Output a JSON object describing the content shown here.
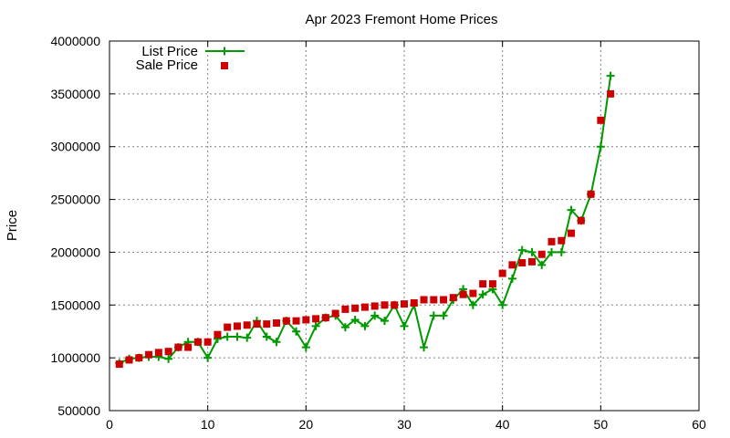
{
  "chart_data": {
    "type": "line",
    "title": "Apr 2023 Fremont Home Prices",
    "xlabel": "",
    "ylabel": "Price",
    "xlim": [
      0,
      60
    ],
    "ylim": [
      500000,
      4000000
    ],
    "xticks": [
      0,
      10,
      20,
      30,
      40,
      50,
      60
    ],
    "yticks": [
      500000,
      1000000,
      1500000,
      2000000,
      2500000,
      3000000,
      3500000,
      4000000
    ],
    "grid": true,
    "legend_position": "top-left",
    "x": [
      1,
      2,
      3,
      4,
      5,
      6,
      7,
      8,
      9,
      10,
      11,
      12,
      13,
      14,
      15,
      16,
      17,
      18,
      19,
      20,
      21,
      22,
      23,
      24,
      25,
      26,
      27,
      28,
      29,
      30,
      31,
      32,
      33,
      34,
      35,
      36,
      37,
      38,
      39,
      40,
      41,
      42,
      43,
      44,
      45,
      46,
      47,
      48,
      49,
      50,
      51
    ],
    "series": [
      {
        "name": "List Price",
        "style": "line+cross",
        "color": "#009900",
        "values": [
          950000,
          990000,
          1000000,
          1010000,
          1010000,
          990000,
          1100000,
          1150000,
          1150000,
          1000000,
          1180000,
          1200000,
          1200000,
          1190000,
          1350000,
          1200000,
          1150000,
          1350000,
          1250000,
          1100000,
          1300000,
          1380000,
          1400000,
          1290000,
          1360000,
          1300000,
          1400000,
          1350000,
          1500000,
          1300000,
          1500000,
          1100000,
          1400000,
          1400000,
          1550000,
          1650000,
          1500000,
          1600000,
          1650000,
          1500000,
          1750000,
          2020000,
          2000000,
          1880000,
          2000000,
          2000000,
          2400000,
          2300000,
          2550000,
          3000000,
          3670000
        ]
      },
      {
        "name": "Sale Price",
        "style": "square",
        "color": "#cc0000",
        "values": [
          940000,
          980000,
          1000000,
          1030000,
          1050000,
          1060000,
          1100000,
          1100000,
          1150000,
          1150000,
          1220000,
          1290000,
          1300000,
          1310000,
          1320000,
          1320000,
          1330000,
          1350000,
          1350000,
          1360000,
          1370000,
          1380000,
          1420000,
          1460000,
          1470000,
          1480000,
          1490000,
          1500000,
          1500000,
          1510000,
          1520000,
          1550000,
          1550000,
          1550000,
          1570000,
          1600000,
          1610000,
          1700000,
          1700000,
          1800000,
          1880000,
          1900000,
          1910000,
          1980000,
          2100000,
          2110000,
          2180000,
          2300000,
          2550000,
          3250000,
          3500000
        ]
      }
    ]
  }
}
